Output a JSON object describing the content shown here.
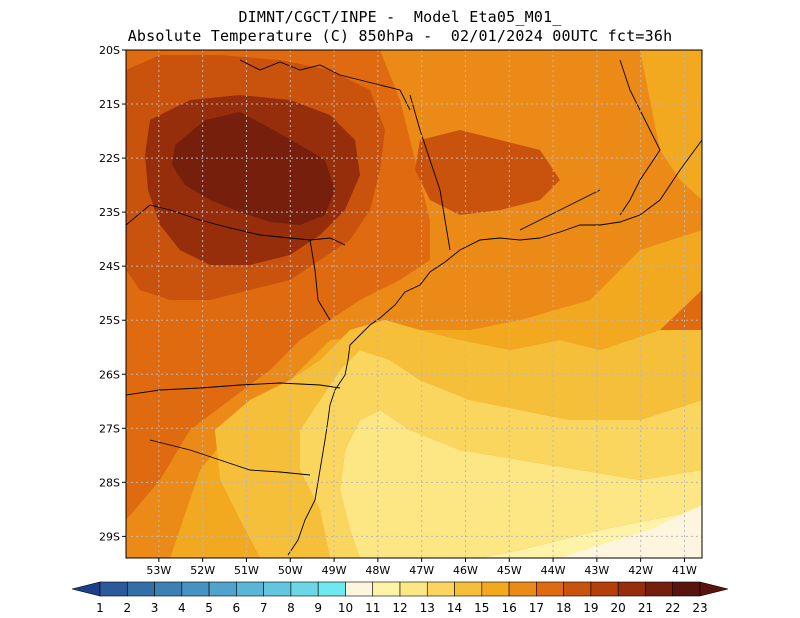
{
  "title": {
    "line1": "DIMNT/CGCT/INPE -  Model Eta05_M01_",
    "line2": "Absolute Temperature (C) 850hPa -  02/01/2024 00UTC fct=36h"
  },
  "map": {
    "lat_range": [
      20.0,
      29.4
    ],
    "lon_range": [
      53.75,
      40.6
    ],
    "lat_ticks": [
      "20S",
      "21S",
      "22S",
      "23S",
      "24S",
      "25S",
      "26S",
      "27S",
      "28S",
      "29S"
    ],
    "lat_values": [
      20,
      21,
      22,
      23,
      24,
      25,
      26,
      27,
      28,
      29
    ],
    "lon_ticks": [
      "53W",
      "52W",
      "51W",
      "50W",
      "49W",
      "48W",
      "47W",
      "46W",
      "45W",
      "44W",
      "43W",
      "42W",
      "41W"
    ],
    "lon_values": [
      53,
      52,
      51,
      50,
      49,
      48,
      47,
      46,
      45,
      44,
      43,
      42,
      41
    ],
    "grid": true
  },
  "colorbar": {
    "labels": [
      "1",
      "2",
      "3",
      "4",
      "5",
      "6",
      "7",
      "8",
      "9",
      "10",
      "11",
      "12",
      "13",
      "14",
      "15",
      "16",
      "17",
      "18",
      "19",
      "20",
      "21",
      "22",
      "23"
    ],
    "colors": [
      "#1d3f8a",
      "#2a5a9c",
      "#336ea8",
      "#3c80b4",
      "#4692c0",
      "#50a4cc",
      "#5ab6d6",
      "#62c6df",
      "#6ad6e6",
      "#70e8f0",
      "#fdf5dd",
      "#fef3a6",
      "#fde784",
      "#fbd65e",
      "#f6bf3a",
      "#f2a91f",
      "#ec8a17",
      "#e06a10",
      "#c9520c",
      "#b43f0b",
      "#962e0b",
      "#761f0d",
      "#5a1410"
    ]
  }
}
